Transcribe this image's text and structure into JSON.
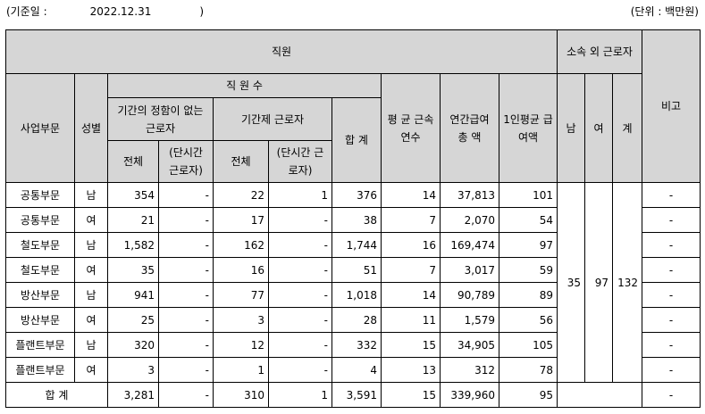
{
  "header": {
    "base_date_label": "(기준일 :",
    "base_date": "2022.12.31",
    "close_paren": ")",
    "unit": "(단위 : 백만원)"
  },
  "columns": {
    "employees": "직원",
    "non_employees": "소속 외 근로자",
    "note": "비고",
    "division": "사업부문",
    "gender": "성별",
    "headcount": "직 원 수",
    "indefinite": "기간의 정함이 없는 근로자",
    "fixed_term": "기간제 근로자",
    "total_count": "합 계",
    "avg_tenure": "평 균 근속연수",
    "annual_pay": "연간급여 총 액",
    "per_person_pay": "1인평균 급여액",
    "male": "남",
    "female": "여",
    "sum": "계",
    "all": "전체",
    "part_time": "(단시간 근로자)",
    "all2": "전체",
    "part_time2": "(단시간 근로자)"
  },
  "rows": [
    {
      "division": "공통부문",
      "gender": "남",
      "ind_all": "354",
      "ind_pt": "-",
      "fix_all": "22",
      "fix_pt": "1",
      "total": "376",
      "tenure": "14",
      "pay": "37,813",
      "avg_pay": "101",
      "note": "-"
    },
    {
      "division": "공통부문",
      "gender": "여",
      "ind_all": "21",
      "ind_pt": "-",
      "fix_all": "17",
      "fix_pt": "-",
      "total": "38",
      "tenure": "7",
      "pay": "2,070",
      "avg_pay": "54",
      "note": "-"
    },
    {
      "division": "철도부문",
      "gender": "남",
      "ind_all": "1,582",
      "ind_pt": "-",
      "fix_all": "162",
      "fix_pt": "-",
      "total": "1,744",
      "tenure": "16",
      "pay": "169,474",
      "avg_pay": "97",
      "note": "-"
    },
    {
      "division": "철도부문",
      "gender": "여",
      "ind_all": "35",
      "ind_pt": "-",
      "fix_all": "16",
      "fix_pt": "-",
      "total": "51",
      "tenure": "7",
      "pay": "3,017",
      "avg_pay": "59",
      "note": "-"
    },
    {
      "division": "방산부문",
      "gender": "남",
      "ind_all": "941",
      "ind_pt": "-",
      "fix_all": "77",
      "fix_pt": "-",
      "total": "1,018",
      "tenure": "14",
      "pay": "90,789",
      "avg_pay": "89",
      "note": "-"
    },
    {
      "division": "방산부문",
      "gender": "여",
      "ind_all": "25",
      "ind_pt": "-",
      "fix_all": "3",
      "fix_pt": "-",
      "total": "28",
      "tenure": "11",
      "pay": "1,579",
      "avg_pay": "56",
      "note": "-"
    },
    {
      "division": "플랜트부문",
      "gender": "남",
      "ind_all": "320",
      "ind_pt": "-",
      "fix_all": "12",
      "fix_pt": "-",
      "total": "332",
      "tenure": "15",
      "pay": "34,905",
      "avg_pay": "105",
      "note": "-"
    },
    {
      "division": "플랜트부문",
      "gender": "여",
      "ind_all": "3",
      "ind_pt": "-",
      "fix_all": "1",
      "fix_pt": "-",
      "total": "4",
      "tenure": "13",
      "pay": "312",
      "avg_pay": "78",
      "note": "-"
    }
  ],
  "non_employee_counts": {
    "male": "35",
    "female": "97",
    "sum": "132"
  },
  "totals": {
    "label": "합 계",
    "ind_all": "3,281",
    "ind_pt": "-",
    "fix_all": "310",
    "fix_pt": "1",
    "total": "3,591",
    "tenure": "15",
    "pay": "339,960",
    "avg_pay": "95",
    "note": "-"
  }
}
